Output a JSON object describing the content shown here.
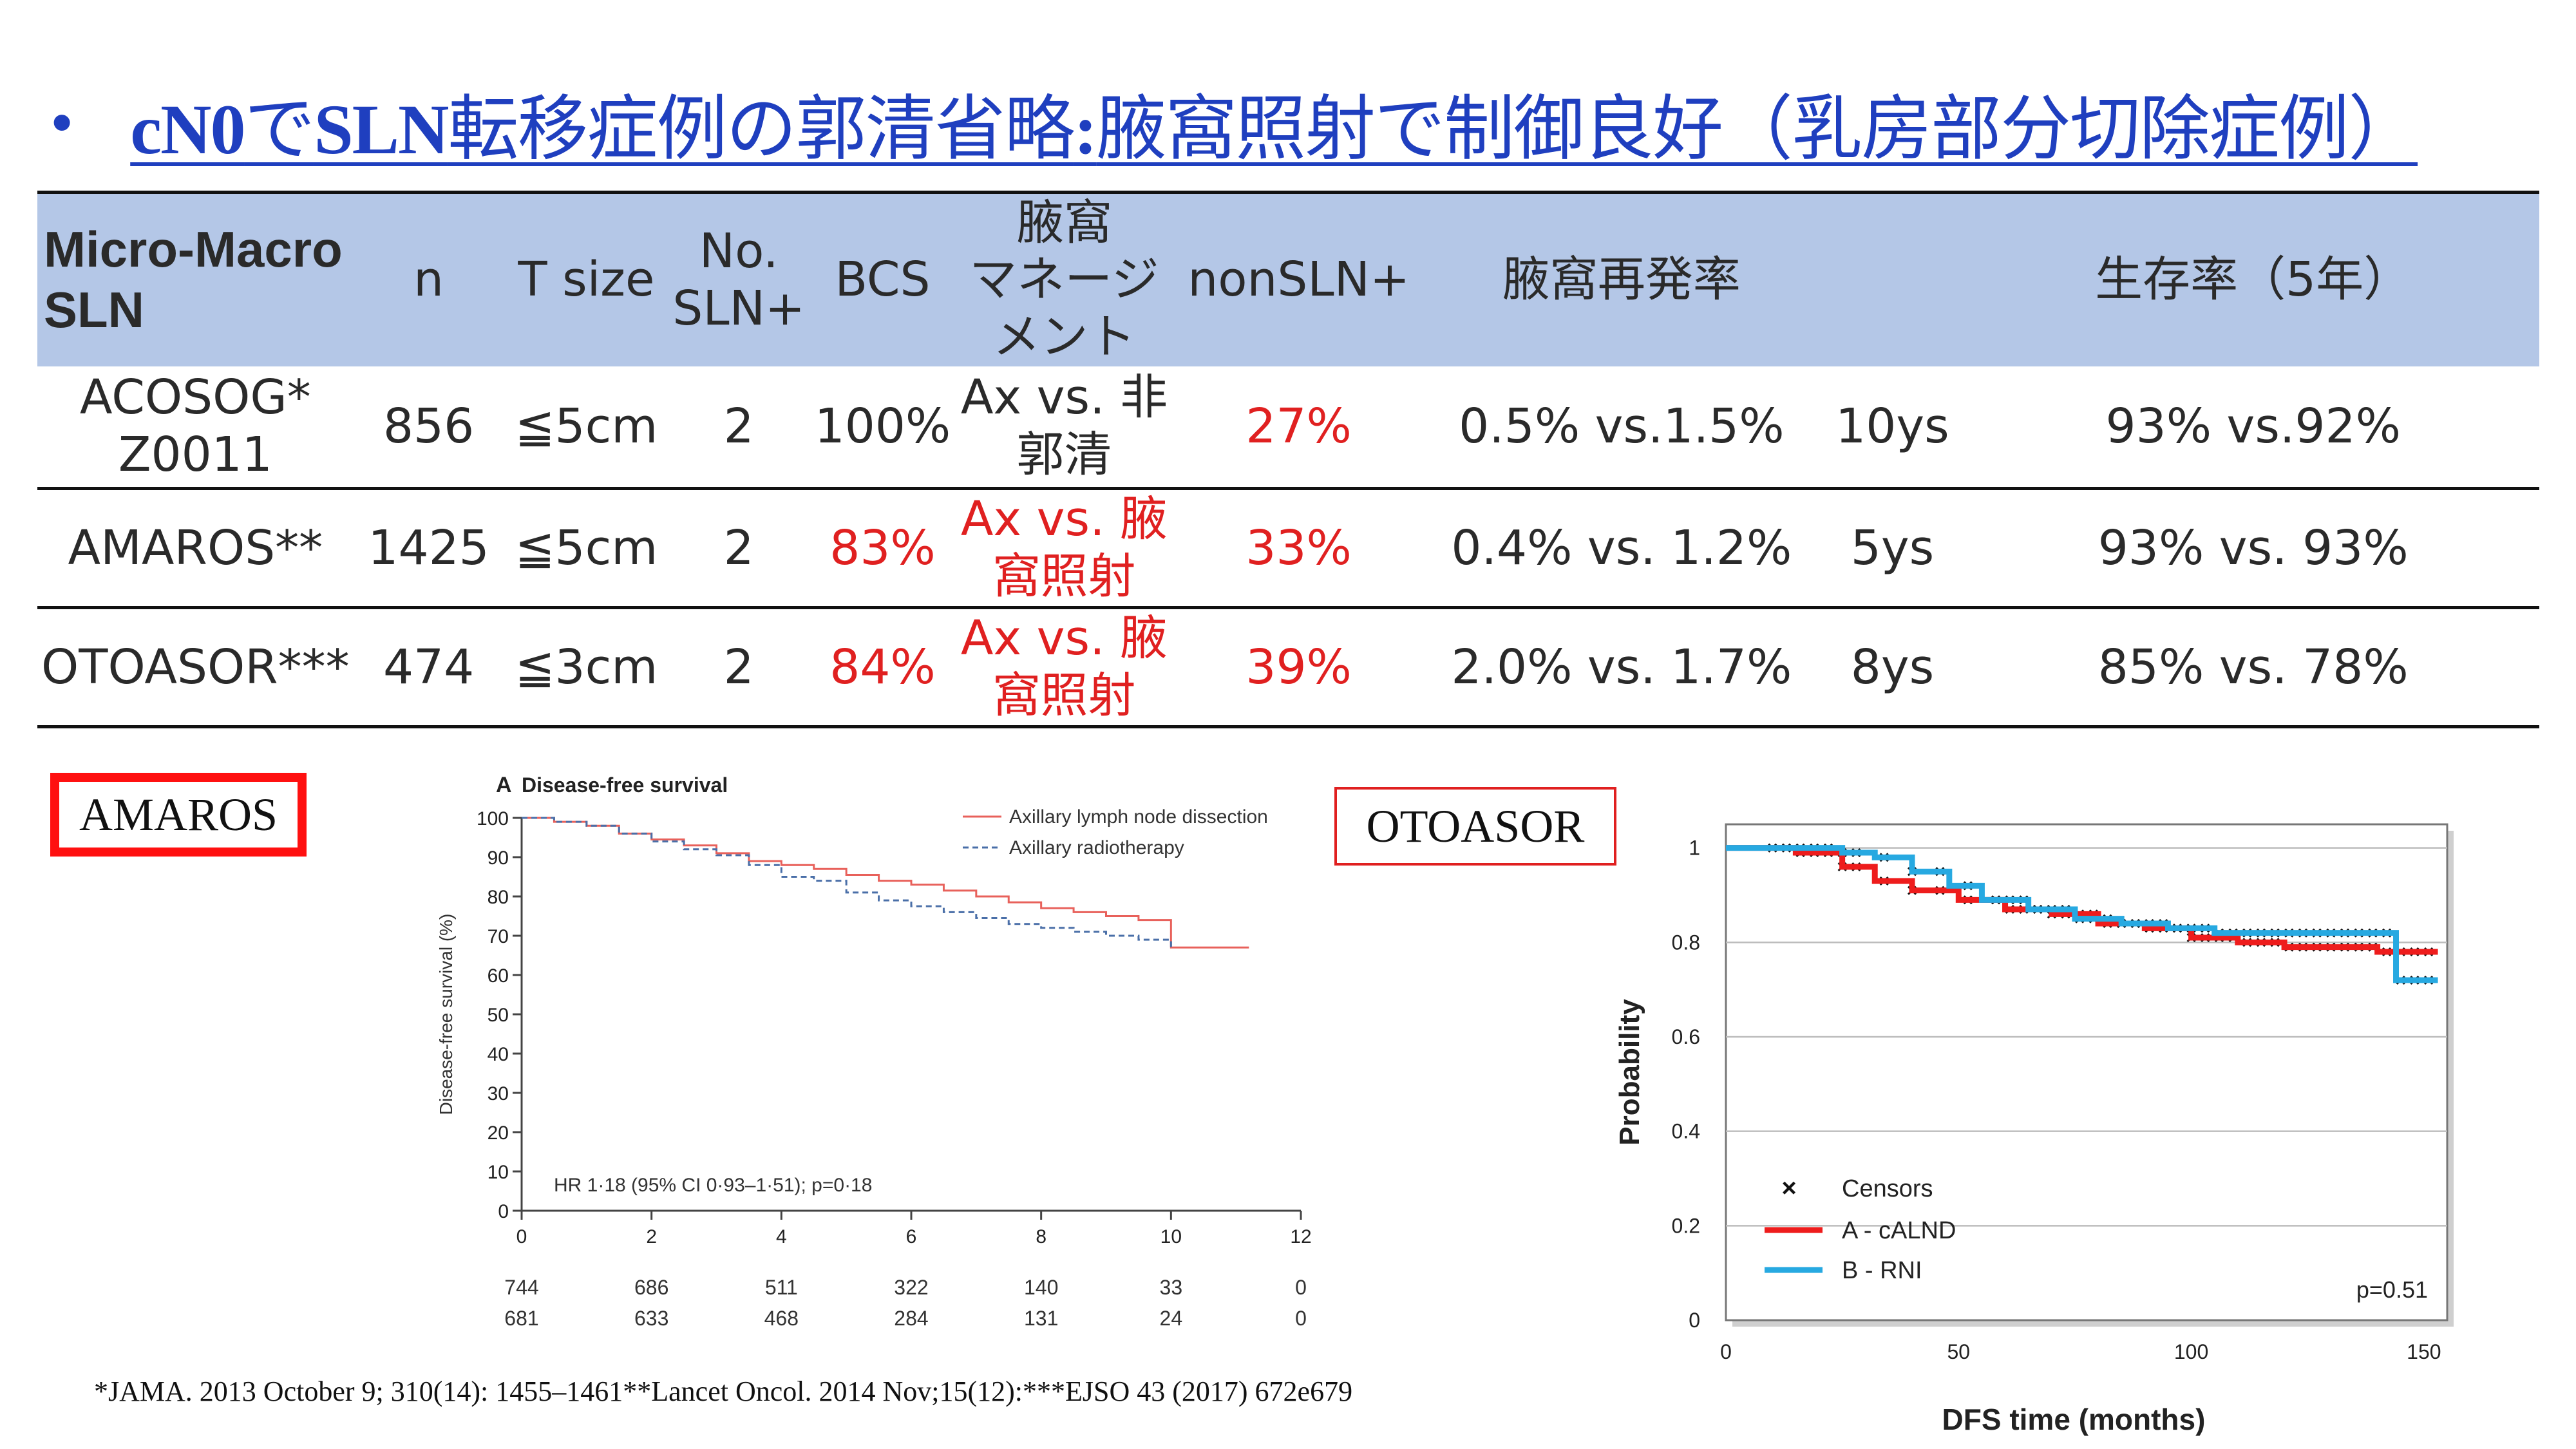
{
  "title": {
    "bullet": "•",
    "latin_prefix": "cN0",
    "part1": "で",
    "latin_sln": "SLN",
    "part2": "転移症例の郭清省略",
    "latin_colon": ":",
    "part3": "腋窩照射で制御良好（乳房部分切除症例）"
  },
  "table": {
    "headers": {
      "col1_line1": "Micro-Macro",
      "col1_line2": "SLN",
      "n": "n",
      "tsize": "T size",
      "nosln_line1": "No.",
      "nosln_line2": "SLN+",
      "bcs": "BCS",
      "mgmt_line1": "腋窩",
      "mgmt_line2": "マネージメント",
      "nonsln": "nonSLN+",
      "recur": "腋窩再発率",
      "survival": "生存率（5年）"
    },
    "rows": [
      {
        "name_line1": "ACOSOG*",
        "name_line2": "Z0011",
        "n": "856",
        "tsize": "≦5cm",
        "nosln": "2",
        "bcs": "100%",
        "mgmt": "Ax vs. 非郭清",
        "nonsln": "27%",
        "recur": "0.5% vs.1.5%",
        "followup": "10ys",
        "survival": "93% vs.92%"
      },
      {
        "name_line1": "AMAROS**",
        "name_line2": "",
        "n": "1425",
        "tsize": "≦5cm",
        "nosln": "2",
        "bcs": "83%",
        "mgmt": "Ax vs. 腋窩照射",
        "nonsln": "33%",
        "recur": "0.4% vs. 1.2%",
        "followup": "5ys",
        "survival": "93% vs. 93%"
      },
      {
        "name_line1": "OTOASOR***",
        "name_line2": "",
        "n": "474",
        "tsize": "≦3cm",
        "nosln": "2",
        "bcs": "84%",
        "mgmt": "Ax vs. 腋窩照射",
        "nonsln": "39%",
        "recur": "2.0% vs. 1.7%",
        "followup": "8ys",
        "survival": "85% vs. 78%"
      }
    ]
  },
  "amaros_label": "AMAROS",
  "otoasor_label": "OTOASOR",
  "colors": {
    "title_blue": "#1f3fbf",
    "header_bg": "#b4c7e7",
    "emphasis_red": "#e02020"
  },
  "chart_data": [
    {
      "type": "line",
      "title": "Disease-free survival",
      "panel_letter": "A",
      "ylabel": "Disease-free survival (%)",
      "xlabel": "",
      "xlim": [
        0,
        12
      ],
      "ylim": [
        0,
        100
      ],
      "xticks": [
        "0",
        "2",
        "4",
        "6",
        "8",
        "10",
        "12"
      ],
      "yticks": [
        "0",
        "10",
        "20",
        "30",
        "40",
        "50",
        "60",
        "70",
        "80",
        "90",
        "100"
      ],
      "legend_position": "top-right",
      "series": [
        {
          "name": "Axillary lymph node dissection",
          "color": "#e8615b",
          "dash": "solid",
          "x": [
            0,
            0.5,
            1,
            1.5,
            2,
            2.5,
            3,
            3.5,
            4,
            4.5,
            5,
            5.5,
            6,
            6.5,
            7,
            7.5,
            8,
            8.5,
            9,
            9.5,
            10,
            10.5,
            11,
            11.2
          ],
          "y": [
            100,
            99,
            98,
            96,
            94.5,
            93,
            91,
            89,
            88,
            87,
            85.5,
            84,
            83,
            81.5,
            80,
            78.5,
            77,
            76,
            75,
            74,
            67,
            67,
            67,
            67
          ]
        },
        {
          "name": "Axillary radiotherapy",
          "color": "#4a6fa8",
          "dash": "dashed",
          "x": [
            0,
            0.5,
            1,
            1.5,
            2,
            2.5,
            3,
            3.5,
            4,
            4.5,
            5,
            5.5,
            6,
            6.5,
            7,
            7.5,
            8,
            8.5,
            9,
            9.5,
            10
          ],
          "y": [
            100,
            99,
            98,
            96,
            94,
            92,
            90.5,
            88,
            85,
            84,
            81,
            79,
            77.5,
            76,
            74.5,
            73,
            72,
            71,
            70,
            69,
            67
          ]
        }
      ],
      "annotation": "HR 1·18 (95% CI 0·93–1·51); p=0·18",
      "numbers_at_risk": [
        [
          "744",
          "686",
          "511",
          "322",
          "140",
          "33",
          "0"
        ],
        [
          "681",
          "633",
          "468",
          "284",
          "131",
          "24",
          "0"
        ]
      ]
    },
    {
      "type": "line",
      "title": "",
      "xlabel": "DFS time (months)",
      "ylabel": "Probability",
      "xlim": [
        0,
        155
      ],
      "ylim": [
        0,
        1.05
      ],
      "xticks": [
        "0",
        "50",
        "100",
        "150"
      ],
      "yticks": [
        "0",
        "0.2",
        "0.4",
        "0.6",
        "0.8",
        "1"
      ],
      "legend_position": "bottom-left",
      "legend_entries": [
        "Censors",
        "A - cALND",
        "B - RNI"
      ],
      "grid": true,
      "annotation": "p=0.51",
      "series": [
        {
          "name": "A - cALND",
          "color": "#ee1c1c",
          "x": [
            0,
            15,
            25,
            32,
            40,
            50,
            60,
            70,
            80,
            90,
            100,
            110,
            120,
            130,
            140,
            145,
            153
          ],
          "y": [
            1,
            0.99,
            0.96,
            0.93,
            0.91,
            0.89,
            0.87,
            0.86,
            0.84,
            0.83,
            0.81,
            0.8,
            0.79,
            0.79,
            0.78,
            0.78,
            0.78
          ]
        },
        {
          "name": "B - RNI",
          "color": "#27a9e1",
          "x": [
            0,
            15,
            25,
            32,
            40,
            48,
            55,
            65,
            75,
            85,
            95,
            105,
            115,
            125,
            135,
            143,
            144,
            153
          ],
          "y": [
            1,
            1,
            0.99,
            0.98,
            0.95,
            0.92,
            0.89,
            0.87,
            0.85,
            0.84,
            0.83,
            0.82,
            0.82,
            0.82,
            0.82,
            0.82,
            0.72,
            0.72
          ]
        }
      ]
    }
  ],
  "footer": "*JAMA. 2013 October 9; 310(14): 1455–1461**Lancet Oncol. 2014 Nov;15(12):***EJSO 43 (2017) 672e679"
}
